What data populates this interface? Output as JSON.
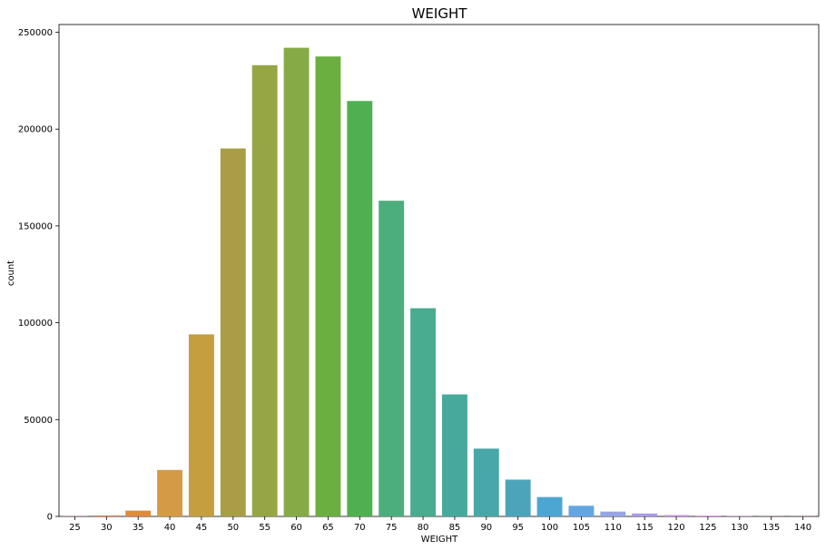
{
  "chart_data": {
    "type": "bar",
    "title": "WEIGHT",
    "xlabel": "WEIGHT",
    "ylabel": "count",
    "categories": [
      "25",
      "30",
      "35",
      "40",
      "45",
      "50",
      "55",
      "60",
      "65",
      "70",
      "75",
      "80",
      "85",
      "90",
      "95",
      "100",
      "105",
      "110",
      "115",
      "120",
      "125",
      "130",
      "135",
      "140"
    ],
    "values": [
      100,
      600,
      3000,
      24000,
      94000,
      190000,
      233000,
      242000,
      237500,
      214500,
      163000,
      107500,
      63000,
      35000,
      19000,
      10000,
      5500,
      2500,
      1500,
      700,
      400,
      150,
      80,
      50
    ],
    "colors": [
      "#e08ca0",
      "#e58f6f",
      "#e08a3c",
      "#d59a45",
      "#c49e3f",
      "#a99e45",
      "#97a645",
      "#86ab46",
      "#6aaf3f",
      "#4fb04f",
      "#4cae7c",
      "#49ab8f",
      "#46a99c",
      "#48a7a8",
      "#4ba4ba",
      "#4da6d2",
      "#62a6e4",
      "#95a5e6",
      "#aa99e8",
      "#c694e6",
      "#d690df",
      "#e08ad3",
      "#e38dc2",
      "#e48fb2"
    ],
    "yticks": [
      0,
      50000,
      100000,
      150000,
      200000,
      250000
    ],
    "ylim": [
      0,
      254000
    ],
    "grid": false,
    "legend": "none"
  }
}
